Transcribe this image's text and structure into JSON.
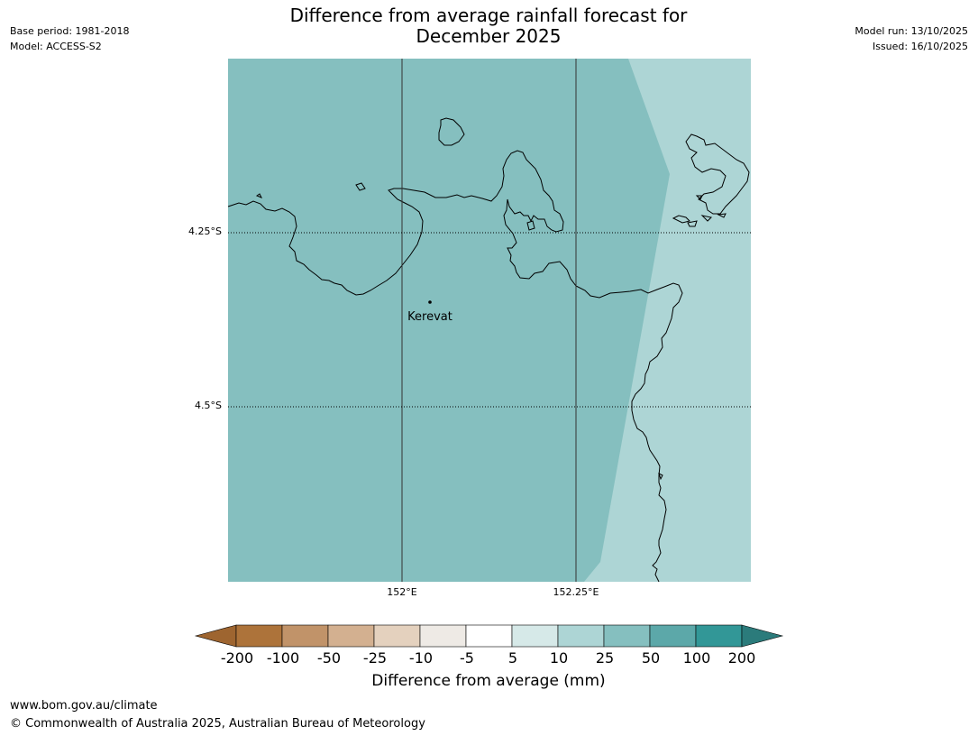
{
  "title_line1": "Difference from average rainfall forecast for",
  "title_line2": "December 2025",
  "meta_left": {
    "base_period": "Base period: 1981-2018",
    "model": "Model: ACCESS-S2"
  },
  "meta_right": {
    "model_run": "Model run: 13/10/2025",
    "issued": "Issued: 16/10/2025"
  },
  "map": {
    "place_label": "Kerevat",
    "lat_ticks": [
      "4.25°S",
      "4.5°S"
    ],
    "lon_ticks": [
      "152°E",
      "152.25°E"
    ],
    "colors": {
      "land_sea_25_50": "#85bfbf",
      "land_sea_10_25": "#add5d5",
      "coast": "#000000",
      "grid": "#333333"
    }
  },
  "legend": {
    "title": "Difference from average (mm)",
    "labels": [
      "-200",
      "-100",
      "-50",
      "-25",
      "-10",
      "-5",
      "5",
      "10",
      "25",
      "50",
      "100",
      "200"
    ],
    "colors": [
      "#9e6530",
      "#ad733a",
      "#c19369",
      "#d3b090",
      "#e4d1be",
      "#eeeae5",
      "#ffffff",
      "#d6e9e8",
      "#add5d5",
      "#85bfbf",
      "#5ca8a9",
      "#329797",
      "#2b7b7b"
    ]
  },
  "footer": {
    "url": "www.bom.gov.au/climate",
    "copyright": "© Commonwealth of Australia 2025, Australian Bureau of Meteorology"
  }
}
